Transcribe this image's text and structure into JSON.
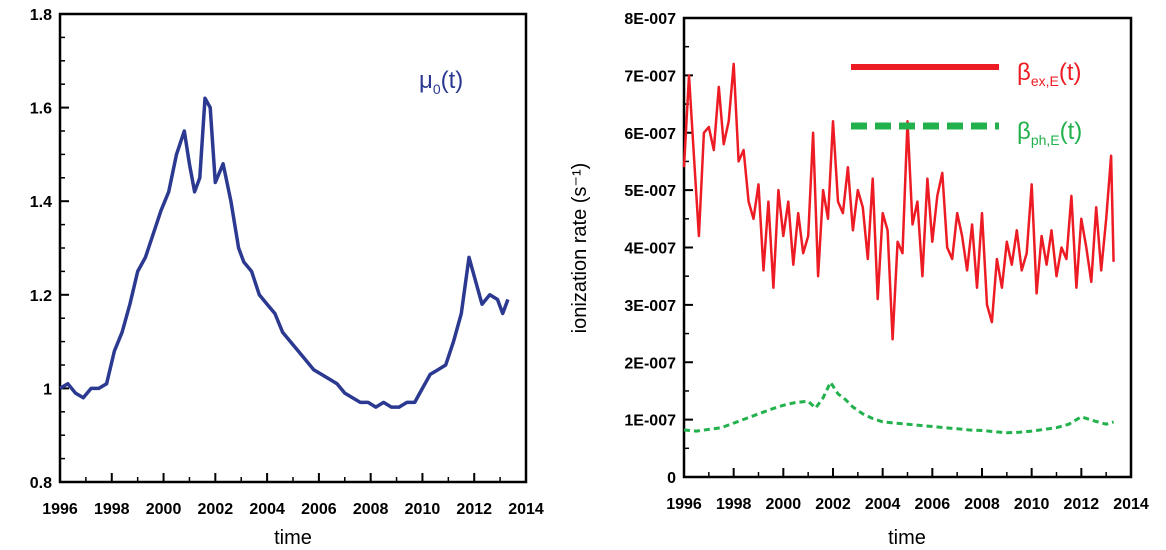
{
  "chart_data": [
    {
      "type": "line",
      "xlabel": "time",
      "ylabel": "",
      "xlim": [
        1996,
        2014
      ],
      "ylim": [
        0.8,
        1.8
      ],
      "x_ticks": [
        "1996",
        "1998",
        "2000",
        "2002",
        "2004",
        "2006",
        "2008",
        "2010",
        "2012",
        "2014"
      ],
      "y_ticks": [
        "0.8",
        "1",
        "1.2",
        "1.4",
        "1.6",
        "1.8"
      ],
      "legend": {
        "symbol": "μ",
        "sub": "0",
        "suffix": "(t)",
        "color": "#2b3990",
        "position": "top-right"
      },
      "series": [
        {
          "name": "μ0(t)",
          "color": "#2b3990",
          "x": [
            1996.0,
            1996.3,
            1996.6,
            1996.9,
            1997.2,
            1997.5,
            1997.8,
            1998.1,
            1998.4,
            1998.7,
            1999.0,
            1999.3,
            1999.6,
            1999.9,
            2000.2,
            2000.5,
            2000.8,
            2001.0,
            2001.2,
            2001.4,
            2001.6,
            2001.8,
            2002.0,
            2002.3,
            2002.6,
            2002.9,
            2003.1,
            2003.4,
            2003.7,
            2004.0,
            2004.3,
            2004.6,
            2004.9,
            2005.2,
            2005.5,
            2005.8,
            2006.1,
            2006.4,
            2006.7,
            2007.0,
            2007.3,
            2007.6,
            2007.9,
            2008.2,
            2008.5,
            2008.8,
            2009.1,
            2009.4,
            2009.7,
            2010.0,
            2010.3,
            2010.6,
            2010.9,
            2011.2,
            2011.5,
            2011.8,
            2012.0,
            2012.3,
            2012.6,
            2012.9,
            2013.1,
            2013.3
          ],
          "values": [
            1.0,
            1.01,
            0.99,
            0.98,
            1.0,
            1.0,
            1.01,
            1.08,
            1.12,
            1.18,
            1.25,
            1.28,
            1.33,
            1.38,
            1.42,
            1.5,
            1.55,
            1.48,
            1.42,
            1.45,
            1.62,
            1.6,
            1.44,
            1.48,
            1.4,
            1.3,
            1.27,
            1.25,
            1.2,
            1.18,
            1.16,
            1.12,
            1.1,
            1.08,
            1.06,
            1.04,
            1.03,
            1.02,
            1.01,
            0.99,
            0.98,
            0.97,
            0.97,
            0.96,
            0.97,
            0.96,
            0.96,
            0.97,
            0.97,
            1.0,
            1.03,
            1.04,
            1.05,
            1.1,
            1.16,
            1.28,
            1.24,
            1.18,
            1.2,
            1.19,
            1.16,
            1.19
          ]
        }
      ]
    },
    {
      "type": "line",
      "xlabel": "time",
      "ylabel": "ionization rate (s⁻¹)",
      "xlim": [
        1996,
        2014
      ],
      "ylim": [
        0,
        8e-07
      ],
      "x_ticks": [
        "1996",
        "1998",
        "2000",
        "2002",
        "2004",
        "2006",
        "2008",
        "2010",
        "2012",
        "2014"
      ],
      "y_ticks": [
        "0",
        "1E-007",
        "2E-007",
        "3E-007",
        "4E-007",
        "5E-007",
        "6E-007",
        "7E-007",
        "8E-007"
      ],
      "series": [
        {
          "name": "βex,E(t)",
          "symbol": "β",
          "sub": "ex,E",
          "suffix": "(t)",
          "color": "#ed1c24",
          "style": "solid",
          "x": [
            1996.0,
            1996.2,
            1996.4,
            1996.6,
            1996.8,
            1997.0,
            1997.2,
            1997.4,
            1997.6,
            1997.8,
            1998.0,
            1998.2,
            1998.4,
            1998.6,
            1998.8,
            1999.0,
            1999.2,
            1999.4,
            1999.6,
            1999.8,
            2000.0,
            2000.2,
            2000.4,
            2000.6,
            2000.8,
            2001.0,
            2001.2,
            2001.4,
            2001.6,
            2001.8,
            2002.0,
            2002.2,
            2002.4,
            2002.6,
            2002.8,
            2003.0,
            2003.2,
            2003.4,
            2003.6,
            2003.8,
            2004.0,
            2004.2,
            2004.4,
            2004.6,
            2004.8,
            2005.0,
            2005.2,
            2005.4,
            2005.6,
            2005.8,
            2006.0,
            2006.2,
            2006.4,
            2006.6,
            2006.8,
            2007.0,
            2007.2,
            2007.4,
            2007.6,
            2007.8,
            2008.0,
            2008.2,
            2008.4,
            2008.6,
            2008.8,
            2009.0,
            2009.2,
            2009.4,
            2009.6,
            2009.8,
            2010.0,
            2010.2,
            2010.4,
            2010.6,
            2010.8,
            2011.0,
            2011.2,
            2011.4,
            2011.6,
            2011.8,
            2012.0,
            2012.2,
            2012.4,
            2012.6,
            2012.8,
            2013.0,
            2013.2,
            2013.3
          ],
          "values": [
            5.4e-07,
            7e-07,
            5.6e-07,
            4.2e-07,
            6e-07,
            6.1e-07,
            5.7e-07,
            6.8e-07,
            5.8e-07,
            6.2e-07,
            7.2e-07,
            5.5e-07,
            5.7e-07,
            4.8e-07,
            4.5e-07,
            5.1e-07,
            3.6e-07,
            4.8e-07,
            3.3e-07,
            5e-07,
            4.2e-07,
            4.8e-07,
            3.7e-07,
            4.6e-07,
            3.9e-07,
            4.2e-07,
            6e-07,
            3.5e-07,
            5e-07,
            4.5e-07,
            6.2e-07,
            4.8e-07,
            4.6e-07,
            5.4e-07,
            4.3e-07,
            5e-07,
            4.7e-07,
            3.8e-07,
            5.2e-07,
            3.1e-07,
            4.6e-07,
            4.3e-07,
            2.4e-07,
            4.1e-07,
            3.9e-07,
            6.2e-07,
            4.4e-07,
            4.8e-07,
            3.5e-07,
            5.2e-07,
            4.1e-07,
            4.9e-07,
            5.3e-07,
            4e-07,
            3.8e-07,
            4.6e-07,
            4.2e-07,
            3.6e-07,
            4.4e-07,
            3.3e-07,
            4.6e-07,
            3e-07,
            2.7e-07,
            3.8e-07,
            3.3e-07,
            4.1e-07,
            3.7e-07,
            4.3e-07,
            3.6e-07,
            3.9e-07,
            5.1e-07,
            3.2e-07,
            4.2e-07,
            3.7e-07,
            4.3e-07,
            3.5e-07,
            4e-07,
            3.8e-07,
            4.9e-07,
            3.3e-07,
            4.5e-07,
            4e-07,
            3.4e-07,
            4.7e-07,
            3.6e-07,
            4.5e-07,
            5.6e-07,
            3.75e-07
          ]
        },
        {
          "name": "βph,E(t)",
          "symbol": "β",
          "sub": "ph,E",
          "suffix": "(t)",
          "color": "#22b14c",
          "style": "dashed",
          "x": [
            1996.0,
            1996.5,
            1997.0,
            1997.5,
            1998.0,
            1998.5,
            1999.0,
            1999.5,
            2000.0,
            2000.5,
            2001.0,
            2001.3,
            2001.6,
            2001.9,
            2002.2,
            2002.5,
            2002.8,
            2003.2,
            2003.6,
            2004.0,
            2004.5,
            2005.0,
            2005.5,
            2006.0,
            2006.5,
            2007.0,
            2007.5,
            2008.0,
            2008.5,
            2009.0,
            2009.5,
            2010.0,
            2010.5,
            2011.0,
            2011.5,
            2012.0,
            2012.5,
            2013.0,
            2013.3
          ],
          "values": [
            8.2e-08,
            8e-08,
            8.3e-08,
            8.6e-08,
            9.4e-08,
            1.02e-07,
            1.1e-07,
            1.18e-07,
            1.25e-07,
            1.3e-07,
            1.32e-07,
            1.2e-07,
            1.38e-07,
            1.65e-07,
            1.45e-07,
            1.35e-07,
            1.22e-07,
            1.1e-07,
            1.02e-07,
            9.6e-08,
            9.4e-08,
            9.2e-08,
            9e-08,
            8.8e-08,
            8.6e-08,
            8.4e-08,
            8.2e-08,
            8.1e-08,
            7.9e-08,
            7.7e-08,
            7.8e-08,
            8e-08,
            8.3e-08,
            8.6e-08,
            9.2e-08,
            1.05e-07,
            9.8e-08,
            9.2e-08,
            9.6e-08
          ]
        }
      ]
    }
  ]
}
